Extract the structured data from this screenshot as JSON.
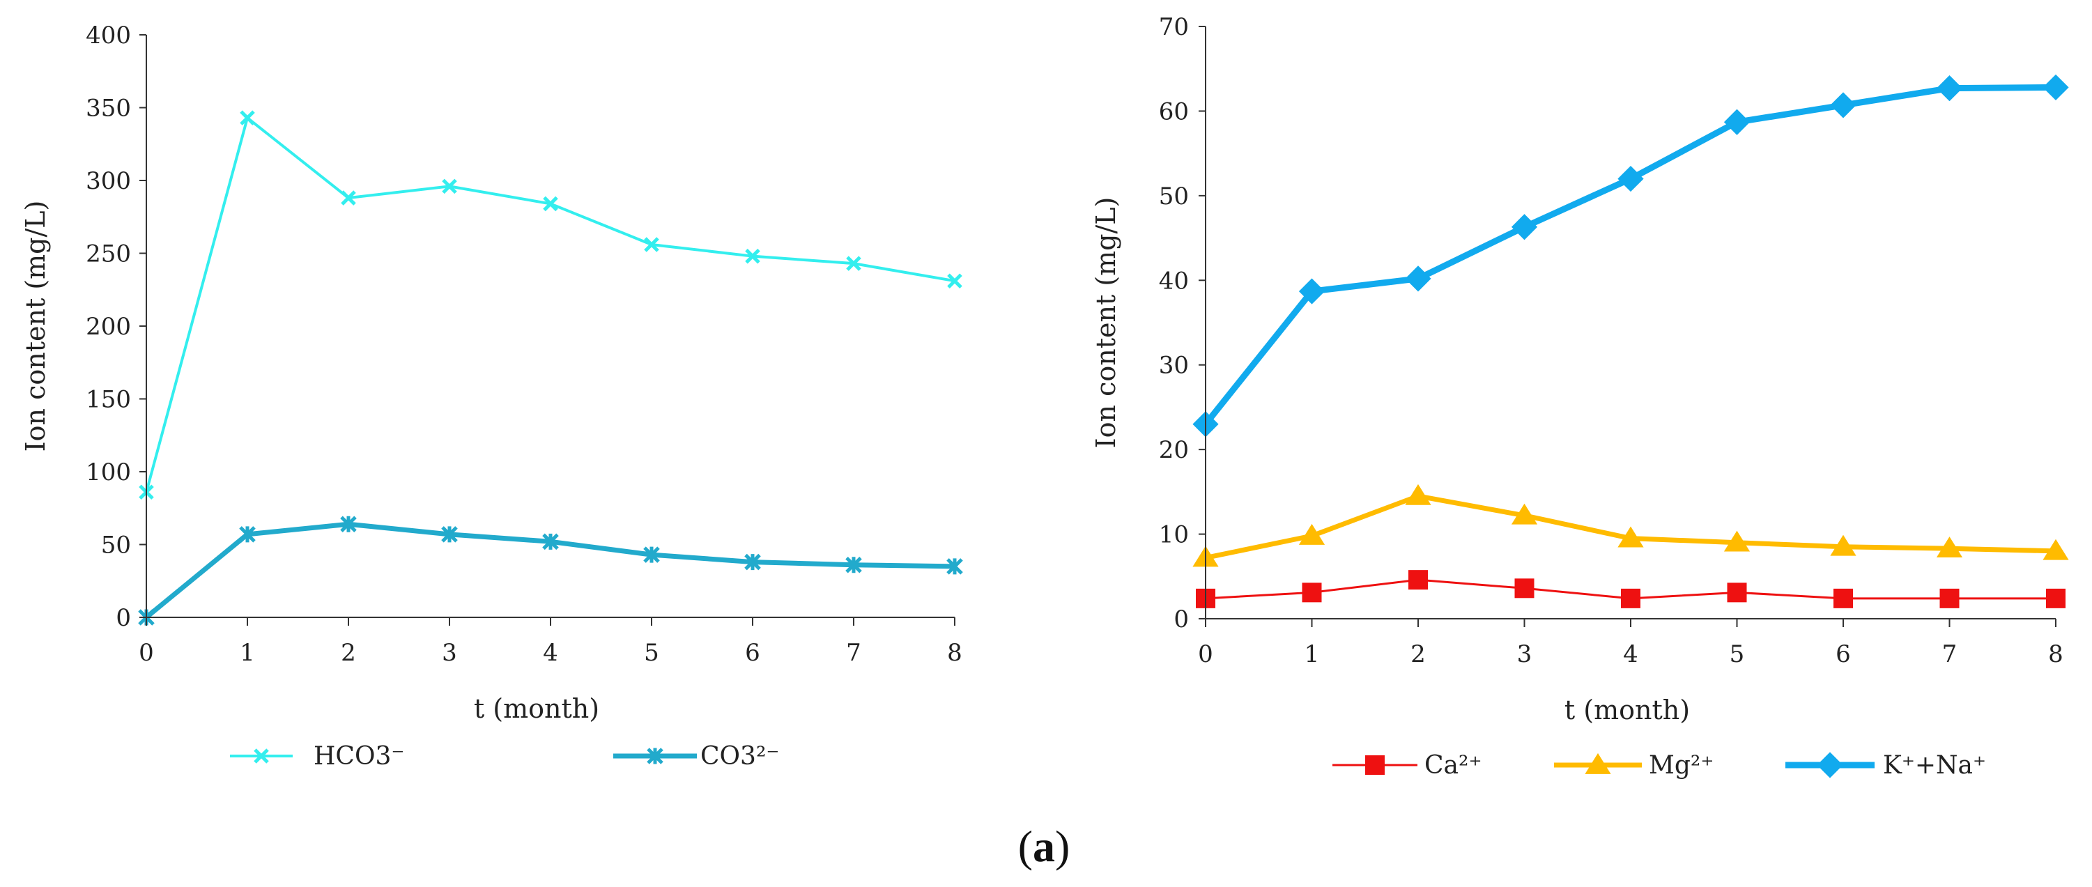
{
  "figure": {
    "caption_open": "(",
    "caption_label": "a",
    "caption_close": ")"
  },
  "chart_data": [
    {
      "type": "line",
      "x": [
        0,
        1,
        2,
        3,
        4,
        5,
        6,
        7,
        8
      ],
      "xlim": [
        0,
        8
      ],
      "ylim": [
        0,
        400
      ],
      "yticks": [
        0,
        50,
        100,
        150,
        200,
        250,
        300,
        350,
        400
      ],
      "xlabel": "t (month)",
      "ylabel": "Ion content (mg/L)",
      "grid": false,
      "legend": "bottom",
      "series": [
        {
          "name": "HCO3⁻",
          "color": "#33eeee",
          "marker": "x",
          "values": [
            86,
            343,
            288,
            296,
            284,
            256,
            248,
            243,
            231
          ]
        },
        {
          "name": "CO3²⁻",
          "color": "#22aacc",
          "marker": "star",
          "values": [
            0,
            57,
            64,
            57,
            52,
            43,
            38,
            36,
            35
          ]
        }
      ]
    },
    {
      "type": "line",
      "x": [
        0,
        1,
        2,
        3,
        4,
        5,
        6,
        7,
        8
      ],
      "xlim": [
        0,
        8
      ],
      "ylim": [
        0,
        70
      ],
      "yticks": [
        0,
        10,
        20,
        30,
        40,
        50,
        60,
        70
      ],
      "xlabel": "t (month)",
      "ylabel": "Ion content (mg/L)",
      "grid": false,
      "legend": "bottom",
      "series": [
        {
          "name": "Ca²⁺",
          "color": "#ee1111",
          "marker": "square",
          "values": [
            2.4,
            3.1,
            4.6,
            3.6,
            2.4,
            3.1,
            2.4,
            2.4,
            2.4
          ]
        },
        {
          "name": "Mg²⁺",
          "color": "#ffbb00",
          "marker": "triangle",
          "values": [
            7.2,
            9.8,
            14.5,
            12.2,
            9.5,
            9.0,
            8.5,
            8.3,
            8.0
          ]
        },
        {
          "name": "K⁺+Na⁺",
          "color": "#11aaee",
          "marker": "diamond",
          "values": [
            23.0,
            38.7,
            40.2,
            46.3,
            52.0,
            58.7,
            60.7,
            62.7,
            62.8
          ]
        }
      ]
    }
  ]
}
